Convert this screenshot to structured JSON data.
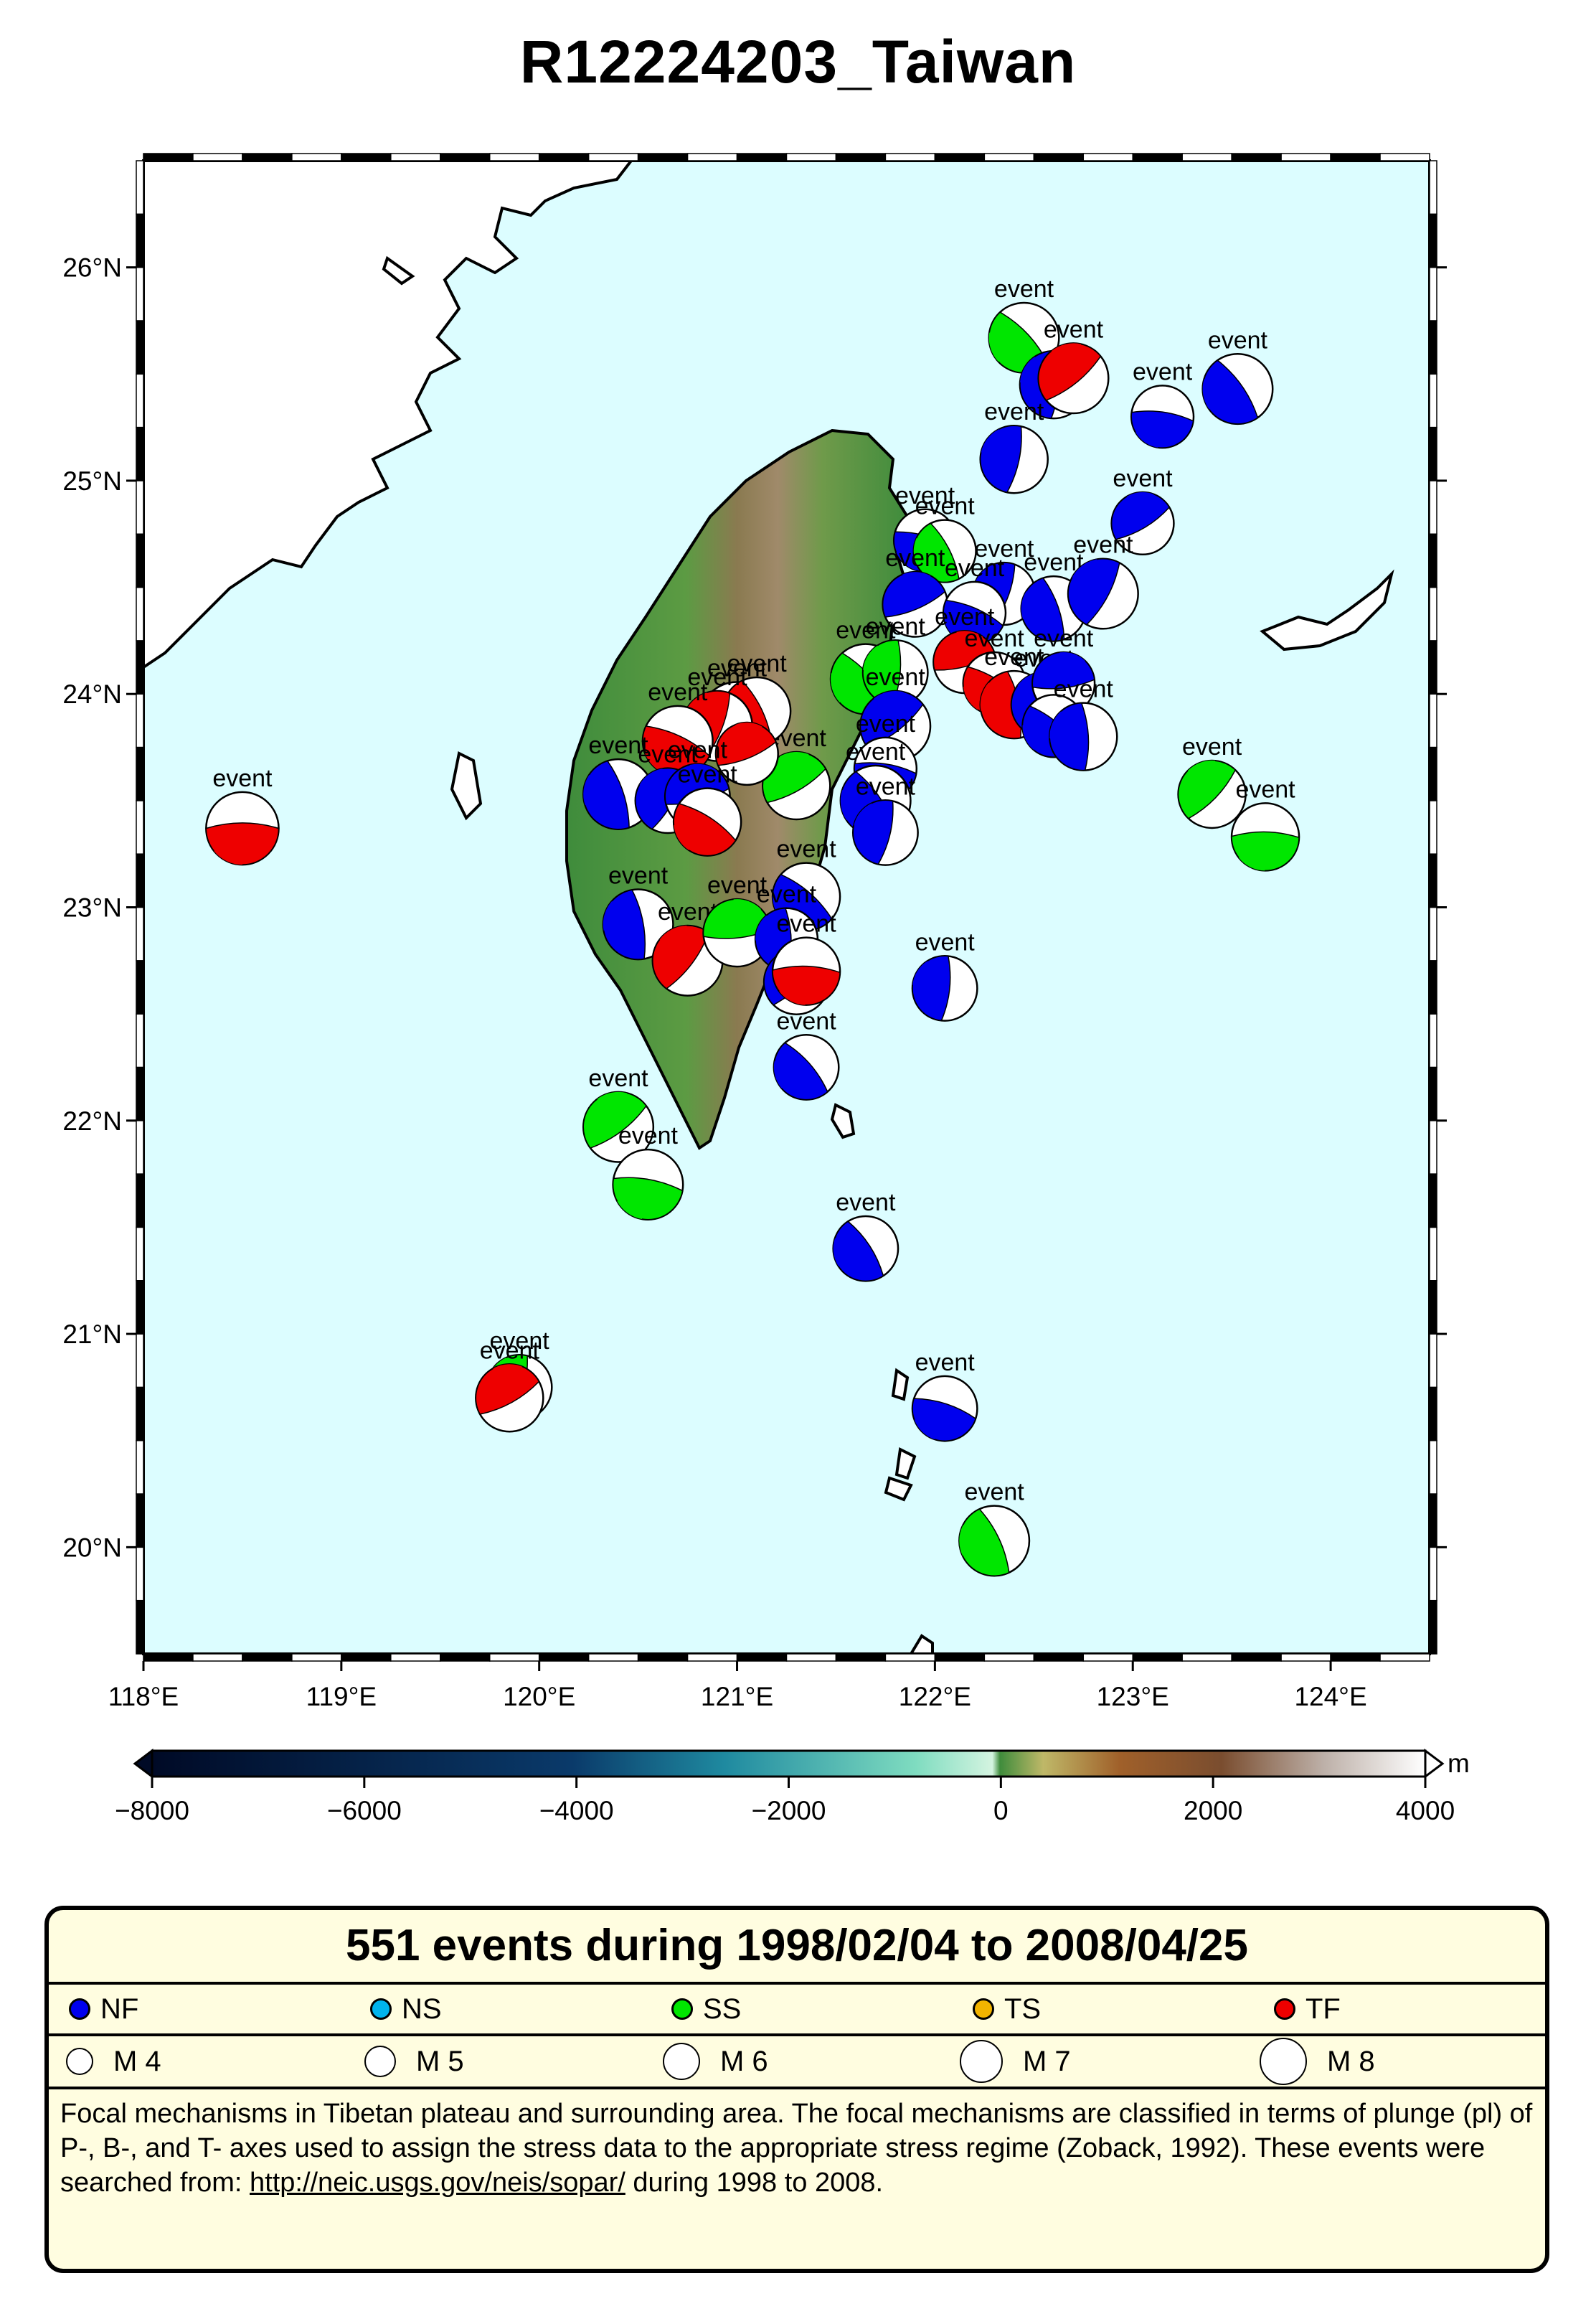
{
  "title": "R12224203_Taiwan",
  "map": {
    "lon_range": [
      118,
      124.5
    ],
    "lat_range": [
      19.5,
      26.5
    ],
    "lon_ticks": [
      {
        "value": 118,
        "label": "118°E"
      },
      {
        "value": 119,
        "label": "119°E"
      },
      {
        "value": 120,
        "label": "120°E"
      },
      {
        "value": 121,
        "label": "121°E"
      },
      {
        "value": 122,
        "label": "122°E"
      },
      {
        "value": 123,
        "label": "123°E"
      },
      {
        "value": 124,
        "label": "124°E"
      }
    ],
    "lat_ticks": [
      {
        "value": 20,
        "label": "20°N"
      },
      {
        "value": 21,
        "label": "21°N"
      },
      {
        "value": 22,
        "label": "22°N"
      },
      {
        "value": 23,
        "label": "23°N"
      },
      {
        "value": 24,
        "label": "24°N"
      },
      {
        "value": 25,
        "label": "25°N"
      },
      {
        "value": 26,
        "label": "26°N"
      }
    ],
    "colors": {
      "ocean": "#dcfdff",
      "land": "#3f8c3c",
      "NF": "#0000ee",
      "NS": "#00b4ee",
      "SS": "#00e600",
      "TS": "#f2b400",
      "TF": "#ee0000"
    },
    "event_label": "event",
    "events": [
      {
        "lon": 118.5,
        "lat": 23.37,
        "type": "TF",
        "mag": 5.7,
        "label": true
      },
      {
        "lon": 122.45,
        "lat": 25.67,
        "type": "SS",
        "mag": 5.6,
        "label": true
      },
      {
        "lon": 122.6,
        "lat": 25.45,
        "type": "NF",
        "mag": 5.5,
        "label": false
      },
      {
        "lon": 122.7,
        "lat": 25.48,
        "type": "TF",
        "mag": 5.6,
        "label": true
      },
      {
        "lon": 123.15,
        "lat": 25.3,
        "type": "NF",
        "mag": 5.3,
        "label": true
      },
      {
        "lon": 123.53,
        "lat": 25.43,
        "type": "NF",
        "mag": 5.6,
        "label": true
      },
      {
        "lon": 122.4,
        "lat": 25.1,
        "type": "NF",
        "mag": 5.5,
        "label": true
      },
      {
        "lon": 123.05,
        "lat": 24.8,
        "type": "NF",
        "mag": 5.3,
        "label": true
      },
      {
        "lon": 121.95,
        "lat": 24.72,
        "type": "NF",
        "mag": 5.3,
        "label": true
      },
      {
        "lon": 122.05,
        "lat": 24.67,
        "type": "SS",
        "mag": 5.3,
        "label": true
      },
      {
        "lon": 122.35,
        "lat": 24.47,
        "type": "NF",
        "mag": 5.3,
        "label": true
      },
      {
        "lon": 121.9,
        "lat": 24.42,
        "type": "NF",
        "mag": 5.4,
        "label": true
      },
      {
        "lon": 122.2,
        "lat": 24.38,
        "type": "NF",
        "mag": 5.3,
        "label": true
      },
      {
        "lon": 122.6,
        "lat": 24.4,
        "type": "NF",
        "mag": 5.4,
        "label": true
      },
      {
        "lon": 122.85,
        "lat": 24.47,
        "type": "NF",
        "mag": 5.6,
        "label": true
      },
      {
        "lon": 122.15,
        "lat": 24.15,
        "type": "TF",
        "mag": 5.3,
        "label": true
      },
      {
        "lon": 122.3,
        "lat": 24.05,
        "type": "TF",
        "mag": 5.3,
        "label": true
      },
      {
        "lon": 122.4,
        "lat": 23.95,
        "type": "TF",
        "mag": 5.5,
        "label": true
      },
      {
        "lon": 122.55,
        "lat": 23.95,
        "type": "NF",
        "mag": 5.4,
        "label": true
      },
      {
        "lon": 122.65,
        "lat": 24.05,
        "type": "NF",
        "mag": 5.3,
        "label": true
      },
      {
        "lon": 122.6,
        "lat": 23.85,
        "type": "NF",
        "mag": 5.3,
        "label": false
      },
      {
        "lon": 122.75,
        "lat": 23.8,
        "type": "NF",
        "mag": 5.5,
        "label": true
      },
      {
        "lon": 123.4,
        "lat": 23.53,
        "type": "SS",
        "mag": 5.5,
        "label": true
      },
      {
        "lon": 123.67,
        "lat": 23.33,
        "type": "SS",
        "mag": 5.5,
        "label": true
      },
      {
        "lon": 121.65,
        "lat": 24.07,
        "type": "SS",
        "mag": 5.6,
        "label": true
      },
      {
        "lon": 121.8,
        "lat": 24.1,
        "type": "SS",
        "mag": 5.4,
        "label": true
      },
      {
        "lon": 121.8,
        "lat": 23.85,
        "type": "NF",
        "mag": 5.6,
        "label": true
      },
      {
        "lon": 121.75,
        "lat": 23.65,
        "type": "NF",
        "mag": 5.3,
        "label": true
      },
      {
        "lon": 121.7,
        "lat": 23.5,
        "type": "NF",
        "mag": 5.6,
        "label": true
      },
      {
        "lon": 121.75,
        "lat": 23.35,
        "type": "NF",
        "mag": 5.4,
        "label": true
      },
      {
        "lon": 121.3,
        "lat": 23.57,
        "type": "SS",
        "mag": 5.5,
        "label": true
      },
      {
        "lon": 121.0,
        "lat": 23.88,
        "type": "TF",
        "mag": 5.8,
        "label": true
      },
      {
        "lon": 121.1,
        "lat": 23.92,
        "type": "TF",
        "mag": 5.5,
        "label": true
      },
      {
        "lon": 120.9,
        "lat": 23.85,
        "type": "TF",
        "mag": 5.6,
        "label": true
      },
      {
        "lon": 121.05,
        "lat": 23.72,
        "type": "TF",
        "mag": 5.3,
        "label": false
      },
      {
        "lon": 120.7,
        "lat": 23.78,
        "type": "TF",
        "mag": 5.6,
        "label": true
      },
      {
        "lon": 120.4,
        "lat": 23.53,
        "type": "NF",
        "mag": 5.6,
        "label": true
      },
      {
        "lon": 120.65,
        "lat": 23.5,
        "type": "NF",
        "mag": 5.4,
        "label": true
      },
      {
        "lon": 120.8,
        "lat": 23.52,
        "type": "NF",
        "mag": 5.4,
        "label": true
      },
      {
        "lon": 120.85,
        "lat": 23.4,
        "type": "TF",
        "mag": 5.5,
        "label": true
      },
      {
        "lon": 120.5,
        "lat": 22.92,
        "type": "NF",
        "mag": 5.6,
        "label": true
      },
      {
        "lon": 120.75,
        "lat": 22.75,
        "type": "TF",
        "mag": 5.6,
        "label": true
      },
      {
        "lon": 121.0,
        "lat": 22.88,
        "type": "SS",
        "mag": 5.5,
        "label": true
      },
      {
        "lon": 121.35,
        "lat": 23.05,
        "type": "NF",
        "mag": 5.5,
        "label": true
      },
      {
        "lon": 121.25,
        "lat": 22.85,
        "type": "NF",
        "mag": 5.3,
        "label": true
      },
      {
        "lon": 121.3,
        "lat": 22.65,
        "type": "NF",
        "mag": 5.4,
        "label": false
      },
      {
        "lon": 121.35,
        "lat": 22.7,
        "type": "TF",
        "mag": 5.5,
        "label": true
      },
      {
        "lon": 121.35,
        "lat": 22.25,
        "type": "NF",
        "mag": 5.4,
        "label": true
      },
      {
        "lon": 122.05,
        "lat": 22.62,
        "type": "NF",
        "mag": 5.4,
        "label": true
      },
      {
        "lon": 120.4,
        "lat": 21.97,
        "type": "SS",
        "mag": 5.6,
        "label": true
      },
      {
        "lon": 120.55,
        "lat": 21.7,
        "type": "SS",
        "mag": 5.6,
        "label": true
      },
      {
        "lon": 121.65,
        "lat": 21.4,
        "type": "NF",
        "mag": 5.4,
        "label": true
      },
      {
        "lon": 119.9,
        "lat": 20.75,
        "type": "SS",
        "mag": 5.4,
        "label": true
      },
      {
        "lon": 119.85,
        "lat": 20.7,
        "type": "TF",
        "mag": 5.5,
        "label": true
      },
      {
        "lon": 122.05,
        "lat": 20.65,
        "type": "NF",
        "mag": 5.4,
        "label": true
      },
      {
        "lon": 122.3,
        "lat": 20.03,
        "type": "SS",
        "mag": 5.6,
        "label": true
      }
    ]
  },
  "colorbar": {
    "min": -8000,
    "max": 4000,
    "unit": "m",
    "ticks": [
      {
        "value": -8000,
        "label": "−8000"
      },
      {
        "value": -6000,
        "label": "−6000"
      },
      {
        "value": -4000,
        "label": "−4000"
      },
      {
        "value": -2000,
        "label": "−2000"
      },
      {
        "value": 0,
        "label": "0"
      },
      {
        "value": 2000,
        "label": "2000"
      },
      {
        "value": 4000,
        "label": "4000"
      }
    ]
  },
  "legend": {
    "header": "551 events during 1998/02/04 to 2008/04/25",
    "types": [
      {
        "code": "NF",
        "label": "NF",
        "color": "#0000ee"
      },
      {
        "code": "NS",
        "label": "NS",
        "color": "#00b4ee"
      },
      {
        "code": "SS",
        "label": "SS",
        "color": "#00e600"
      },
      {
        "code": "TS",
        "label": "TS",
        "color": "#f2b400"
      },
      {
        "code": "TF",
        "label": "TF",
        "color": "#ee0000"
      }
    ],
    "magnitudes": [
      {
        "label": "M 4",
        "value": 4
      },
      {
        "label": "M 5",
        "value": 5
      },
      {
        "label": "M 6",
        "value": 6
      },
      {
        "label": "M 7",
        "value": 7
      },
      {
        "label": "M 8",
        "value": 8
      }
    ],
    "description_part1": "Focal mechanisms in Tibetan plateau and surrounding area.  The focal mechanisms are classified in terms of plunge (pl) of P-, B-, and T- axes used to assign the stress data to the appropriate stress regime (Zoback, 1992).  These events were searched from: ",
    "link_text": "http://neic.usgs.gov/neis/sopar/",
    "description_part2": " during 1998 to 2008."
  }
}
